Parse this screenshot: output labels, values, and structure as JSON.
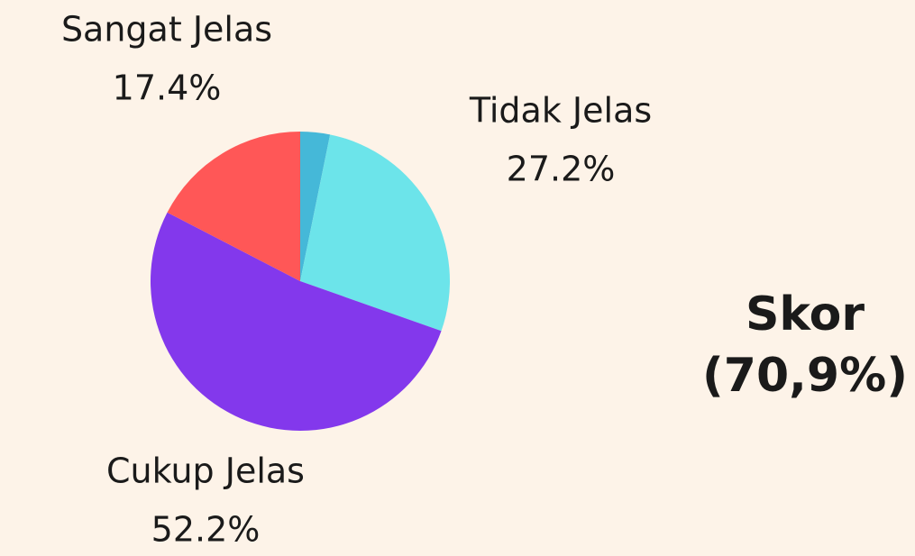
{
  "chart_data": {
    "type": "pie",
    "categories": [
      null,
      "Tidak Jelas",
      "Cukup Jelas",
      "Sangat Jelas"
    ],
    "values": [
      3.2,
      27.2,
      52.2,
      17.4
    ],
    "value_labels": [
      null,
      "27.2%",
      "52.2%",
      "17.4%"
    ],
    "colors": [
      "#45b8d8",
      "#6ce4ea",
      "#8338ec",
      "#ff5757"
    ],
    "annotation": [
      "Skor",
      "(70,9%)"
    ]
  }
}
